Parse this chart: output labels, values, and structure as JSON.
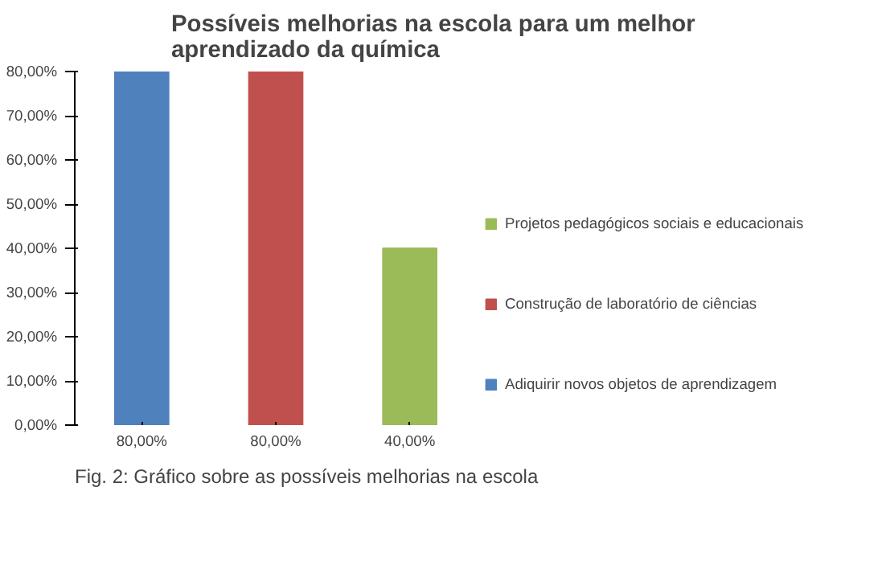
{
  "chart_data": {
    "type": "bar",
    "title": "Possíveis melhorias na escola para um melhor aprendizado da química",
    "categories": [
      "80,00%",
      "80,00%",
      "40,00%"
    ],
    "series": [
      {
        "name": "Adiquirir novos objetos de aprendizagem",
        "color": "#4f81bd",
        "values": [
          80,
          null,
          null
        ]
      },
      {
        "name": "Construção de laboratório de ciências",
        "color": "#c0504d",
        "values": [
          null,
          80,
          null
        ]
      },
      {
        "name": "Projetos pedagógicos sociais e educacionais",
        "color": "#9bbb59",
        "values": [
          null,
          null,
          40
        ]
      }
    ],
    "ylim": [
      0,
      80
    ],
    "yticks": [
      {
        "value": 0,
        "label": "0,00%"
      },
      {
        "value": 10,
        "label": "10,00%"
      },
      {
        "value": 20,
        "label": "20,00%"
      },
      {
        "value": 30,
        "label": "30,00%"
      },
      {
        "value": 40,
        "label": "40,00%"
      },
      {
        "value": 50,
        "label": "50,00%"
      },
      {
        "value": 60,
        "label": "60,00%"
      },
      {
        "value": 70,
        "label": "70,00%"
      },
      {
        "value": 80,
        "label": "80,00%"
      }
    ],
    "legend": "right",
    "grid": false,
    "annotations": [
      "Fig. 2: Gráfico sobre as possíveis melhorias na escola"
    ]
  }
}
